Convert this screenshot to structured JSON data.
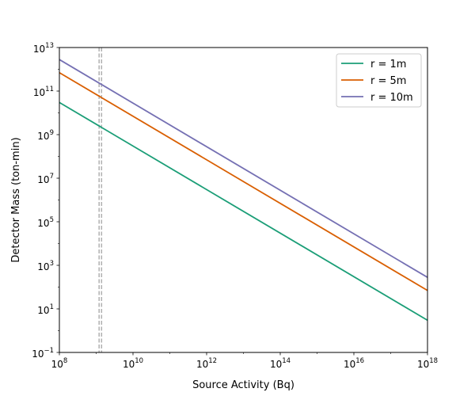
{
  "chart_data": {
    "type": "line",
    "xscale": "log",
    "yscale": "log",
    "xlabel": "Source Activity (Bq)",
    "ylabel": "Detector Mass (ton-min)",
    "xlim": [
      100000000.0,
      1e+18
    ],
    "ylim": [
      0.1,
      10000000000000.0
    ],
    "x_tick_labels": [
      {
        "base": "10",
        "exp": "8"
      },
      {
        "base": "10",
        "exp": "10"
      },
      {
        "base": "10",
        "exp": "12"
      },
      {
        "base": "10",
        "exp": "14"
      },
      {
        "base": "10",
        "exp": "16"
      },
      {
        "base": "10",
        "exp": "18"
      }
    ],
    "y_tick_labels": [
      {
        "base": "10",
        "exp": "−1"
      },
      {
        "base": "10",
        "exp": "1"
      },
      {
        "base": "10",
        "exp": "3"
      },
      {
        "base": "10",
        "exp": "5"
      },
      {
        "base": "10",
        "exp": "7"
      },
      {
        "base": "10",
        "exp": "9"
      },
      {
        "base": "10",
        "exp": "11"
      },
      {
        "base": "10",
        "exp": "13"
      }
    ],
    "series": [
      {
        "name": "r = 1m",
        "color": "#1b9e77",
        "x": [
          100000000.0,
          1e+18
        ],
        "y": [
          30000000000.0,
          3
        ]
      },
      {
        "name": "r = 5m",
        "color": "#d95f02",
        "x": [
          100000000.0,
          1e+18
        ],
        "y": [
          700000000000.0,
          70
        ]
      },
      {
        "name": "r = 10m",
        "color": "#7570b3",
        "x": [
          100000000.0,
          1e+18
        ],
        "y": [
          2800000000000.0,
          280
        ]
      }
    ],
    "reference_lines": [
      {
        "orientation": "vertical",
        "x": 1200000000.0,
        "color": "#b0b0b0",
        "style": "dashed"
      },
      {
        "orientation": "vertical",
        "x": 1400000000.0,
        "color": "#b0b0b0",
        "style": "dashed"
      }
    ],
    "legend_position": "top-right",
    "grid": false
  }
}
